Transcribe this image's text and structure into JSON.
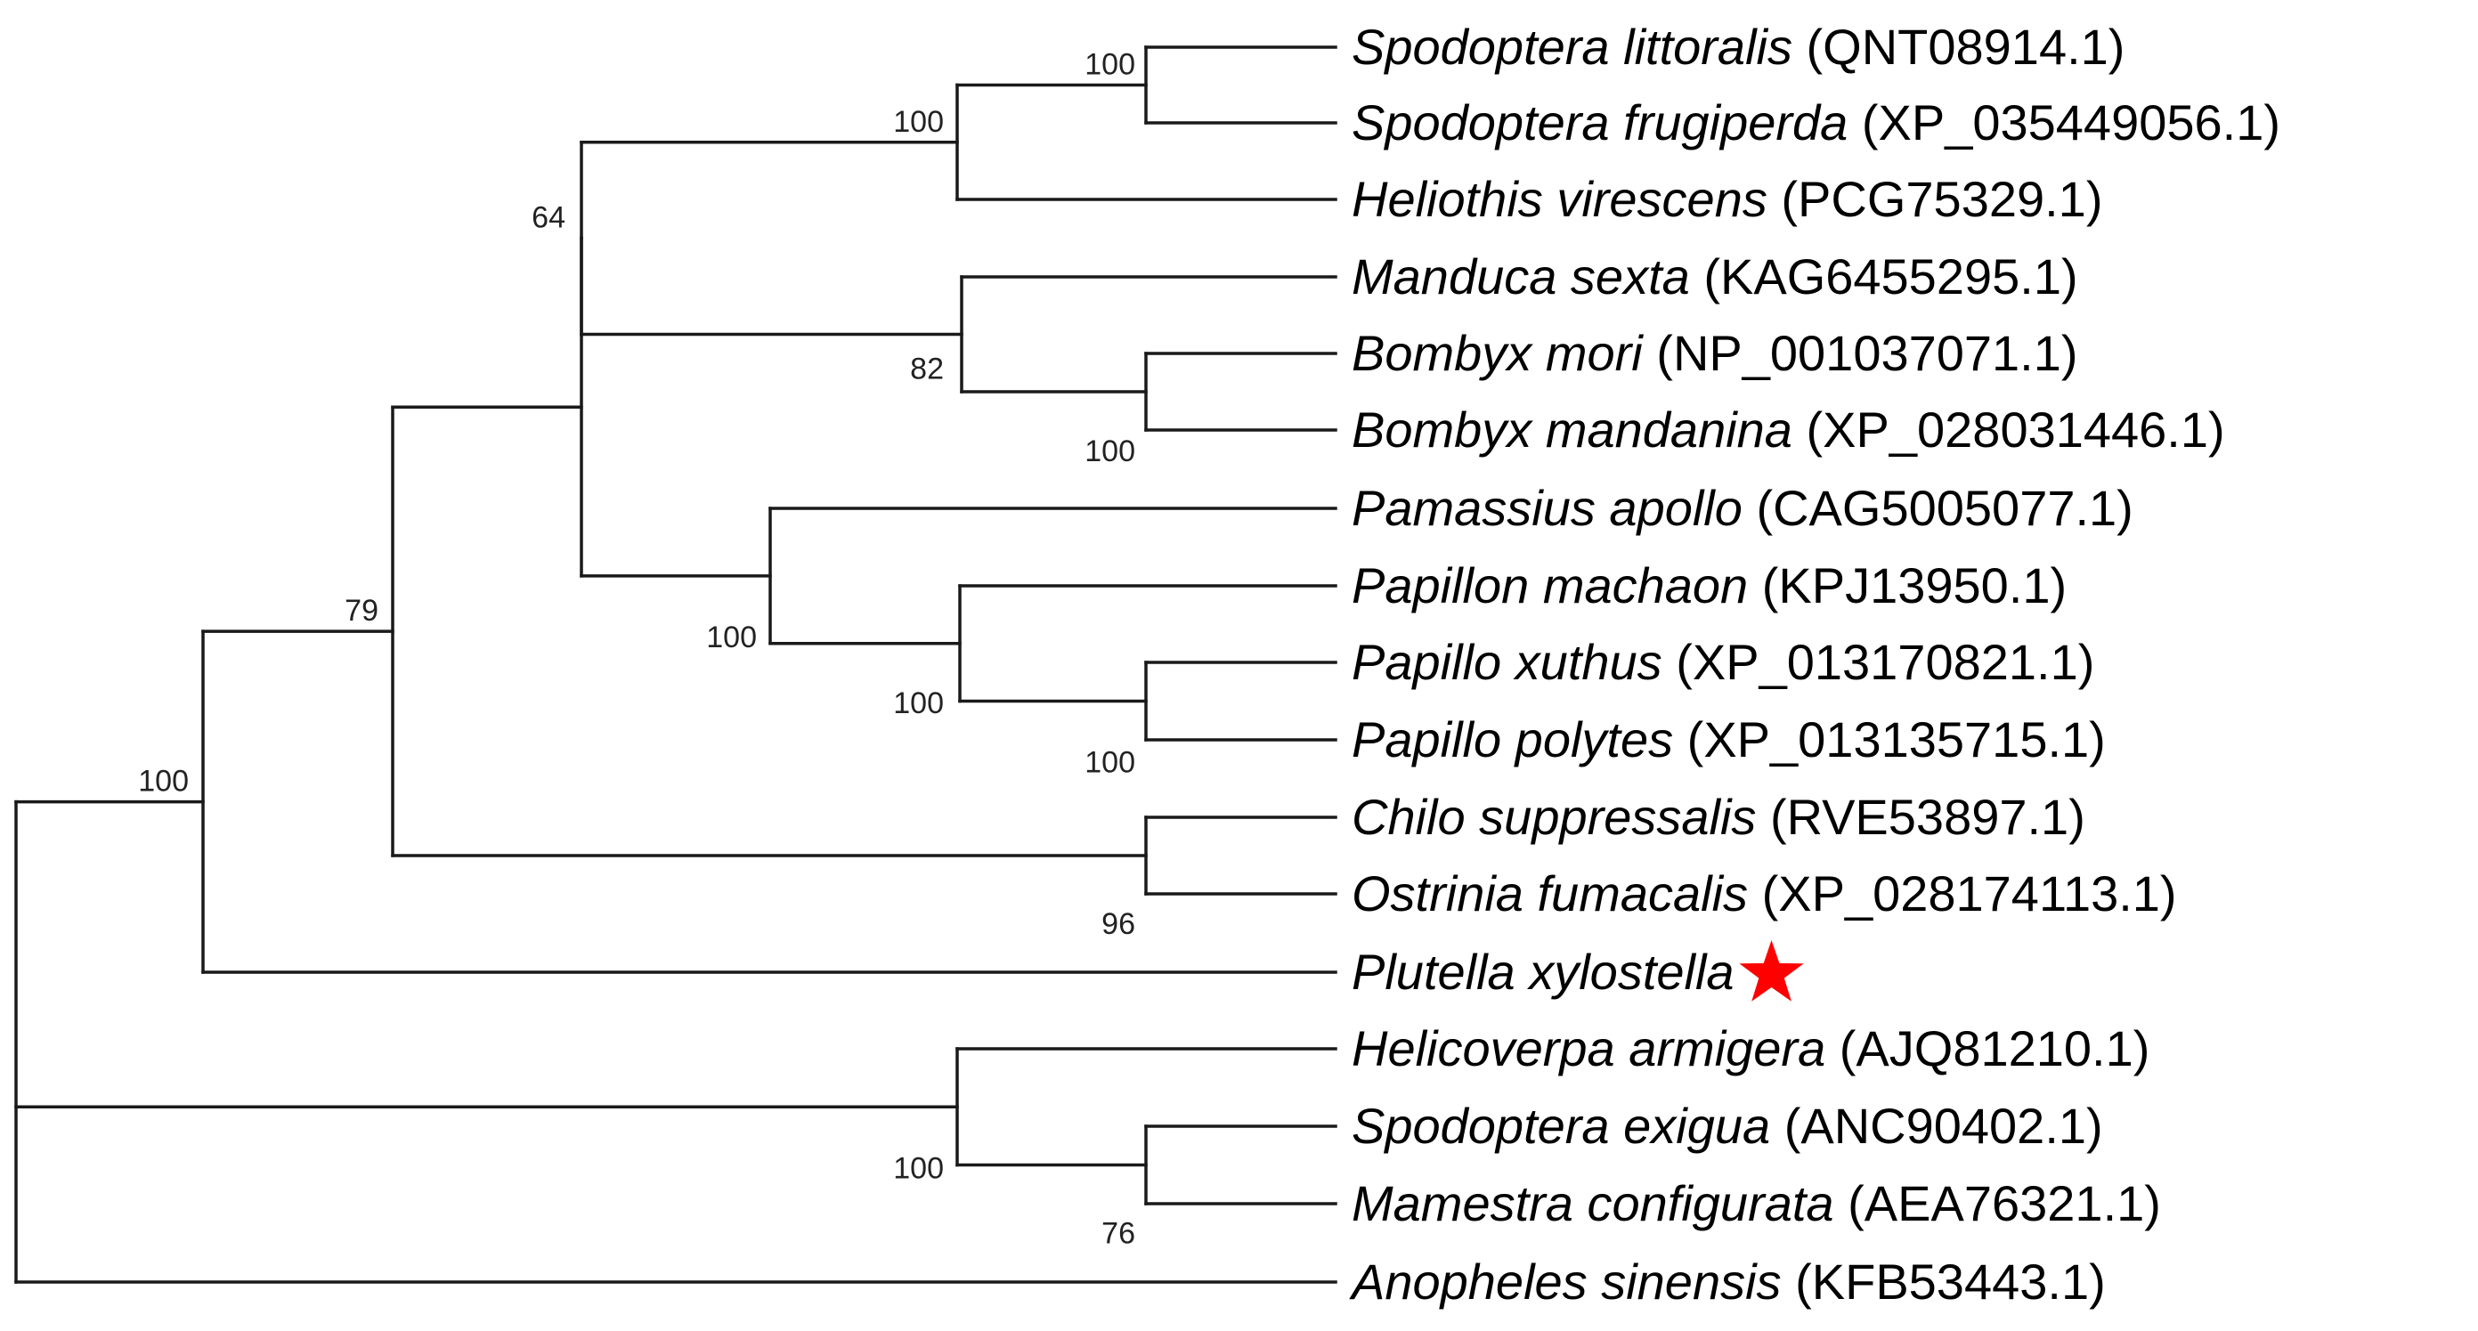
{
  "diagram": {
    "type": "phylogenetic-tree",
    "highlight_color": "#ff0000",
    "line_color": "#1a1a1a"
  },
  "taxa": [
    {
      "id": "t1",
      "species": "Spodoptera littoralis",
      "accession": "(QNT08914.1)"
    },
    {
      "id": "t2",
      "species": "Spodoptera frugiperda",
      "accession": "(XP_035449056.1)"
    },
    {
      "id": "t3",
      "species": "Heliothis virescens",
      "accession": "(PCG75329.1)"
    },
    {
      "id": "t4",
      "species": "Manduca sexta",
      "accession": "(KAG6455295.1)"
    },
    {
      "id": "t5",
      "species": "Bombyx mori",
      "accession": "(NP_001037071.1)"
    },
    {
      "id": "t6",
      "species": "Bombyx mandanina",
      "accession": "(XP_028031446.1)"
    },
    {
      "id": "t7",
      "species": "Pamassius apollo",
      "accession": "(CAG5005077.1)"
    },
    {
      "id": "t8",
      "species": "Papillon machaon",
      "accession": "(KPJ13950.1)"
    },
    {
      "id": "t9",
      "species": "Papillo xuthus",
      "accession": "(XP_013170821.1)"
    },
    {
      "id": "t10",
      "species": "Papillo polytes",
      "accession": "(XP_013135715.1)"
    },
    {
      "id": "t11",
      "species": "Chilo suppressalis",
      "accession": "(RVE53897.1)"
    },
    {
      "id": "t12",
      "species": "Ostrinia fumacalis",
      "accession": "(XP_028174113.1)"
    },
    {
      "id": "t13",
      "species": "Plutella xylostella",
      "accession": "",
      "marker": "star",
      "marker_color": "#ff0000"
    },
    {
      "id": "t14",
      "species": "Helicoverpa armigera",
      "accession": "(AJQ81210.1)"
    },
    {
      "id": "t15",
      "species": "Spodoptera exigua",
      "accession": "(ANC90402.1)"
    },
    {
      "id": "t16",
      "species": "Mamestra configurata",
      "accession": "(AEA76321.1)"
    },
    {
      "id": "t17",
      "species": "Anopheles sinensis",
      "accession": "(KFB53443.1)"
    }
  ],
  "clades": [
    {
      "id": "c1",
      "support": "100",
      "children": [
        "t1",
        "t2"
      ]
    },
    {
      "id": "c2",
      "support": "100",
      "children": [
        "c1",
        "t3"
      ]
    },
    {
      "id": "c3",
      "support": "100",
      "children": [
        "t5",
        "t6"
      ]
    },
    {
      "id": "c4",
      "support": "82",
      "children": [
        "t4",
        "c3"
      ]
    },
    {
      "id": "c5",
      "support": "64",
      "children": [
        "c2",
        "c4"
      ]
    },
    {
      "id": "c6",
      "support": "100",
      "children": [
        "t9",
        "t10"
      ]
    },
    {
      "id": "c7",
      "support": "100",
      "children": [
        "t8",
        "c6"
      ]
    },
    {
      "id": "c8",
      "support": "100",
      "children": [
        "t7",
        "c7"
      ]
    },
    {
      "id": "c9",
      "support": "",
      "children": [
        "c5",
        "c8"
      ]
    },
    {
      "id": "c10",
      "support": "96",
      "children": [
        "t11",
        "t12"
      ]
    },
    {
      "id": "c11",
      "support": "79",
      "children": [
        "c9",
        "c10"
      ]
    },
    {
      "id": "c12",
      "support": "100",
      "children": [
        "c11",
        "t13"
      ]
    },
    {
      "id": "c13",
      "support": "76",
      "children": [
        "t15",
        "t16"
      ]
    },
    {
      "id": "c14",
      "support": "100",
      "children": [
        "t14",
        "c13"
      ]
    },
    {
      "id": "root",
      "support": "",
      "children": [
        "c12",
        "c14",
        "t17"
      ]
    }
  ]
}
